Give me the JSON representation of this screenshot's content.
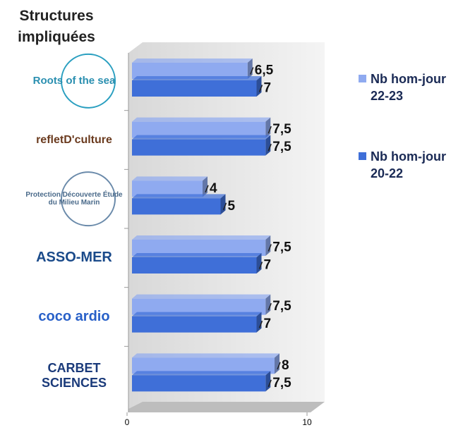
{
  "chart_data": {
    "type": "bar",
    "orientation": "horizontal",
    "title": "Structures impliquées",
    "categories": [
      "Roots of the sea",
      "refletD'culture",
      "Protection Découverte Étude du Milieu Marin",
      "ASSO-MER",
      "coco ardio",
      "CARBET SCIENCES"
    ],
    "series": [
      {
        "name": "Nb hom-jour 22-23",
        "color": "#8faaf0",
        "values": [
          6.5,
          7.5,
          4,
          7.5,
          7.5,
          8
        ],
        "value_labels": [
          "6,5",
          "7,5",
          "4",
          "7,5",
          "7,5",
          "8"
        ]
      },
      {
        "name": "Nb hom-jour 20-22",
        "color": "#3f6fd8",
        "values": [
          7,
          7.5,
          5,
          7,
          7,
          7.5
        ],
        "value_labels": [
          "7",
          "7,5",
          "5",
          "7",
          "7",
          "7,5"
        ]
      }
    ],
    "xlim": [
      0,
      10
    ],
    "xticks": [
      0,
      10
    ],
    "legend": "right"
  }
}
